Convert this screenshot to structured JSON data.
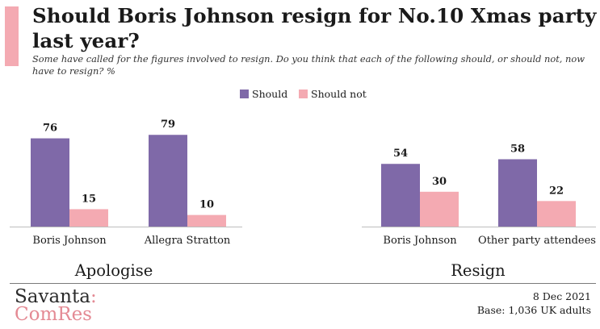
{
  "header": {
    "title": "Should Boris Johnson resign for No.10 Xmas party last year?",
    "subtitle": "Some have called for the figures involved to resign. Do you think that each of the following should, or should not, now have to resign? %"
  },
  "chart_data": {
    "type": "bar",
    "title": "Should Boris Johnson resign for No.10 Xmas party last year?",
    "ylabel": "%",
    "ylim": [
      0,
      100
    ],
    "grid": false,
    "legend_position": "top-center",
    "groups": [
      {
        "label": "Apologise",
        "categories": [
          "Boris Johnson",
          "Allegra Stratton"
        ]
      },
      {
        "label": "Resign",
        "categories": [
          "Boris Johnson",
          "Other party attendees"
        ]
      }
    ],
    "categories": [
      "Boris Johnson",
      "Allegra Stratton",
      "Boris Johnson",
      "Other party attendees"
    ],
    "series": [
      {
        "name": "Should",
        "color": "#7f69a8",
        "values": [
          76,
          79,
          54,
          58
        ]
      },
      {
        "name": "Should not",
        "color": "#f4aab2",
        "values": [
          15,
          10,
          30,
          22
        ]
      }
    ]
  },
  "footer": {
    "brand_top": "Savanta",
    "brand_colon": ":",
    "brand_bottom": "ComRes",
    "date": "8 Dec 2021",
    "base": "Base: 1,036 UK adults"
  }
}
